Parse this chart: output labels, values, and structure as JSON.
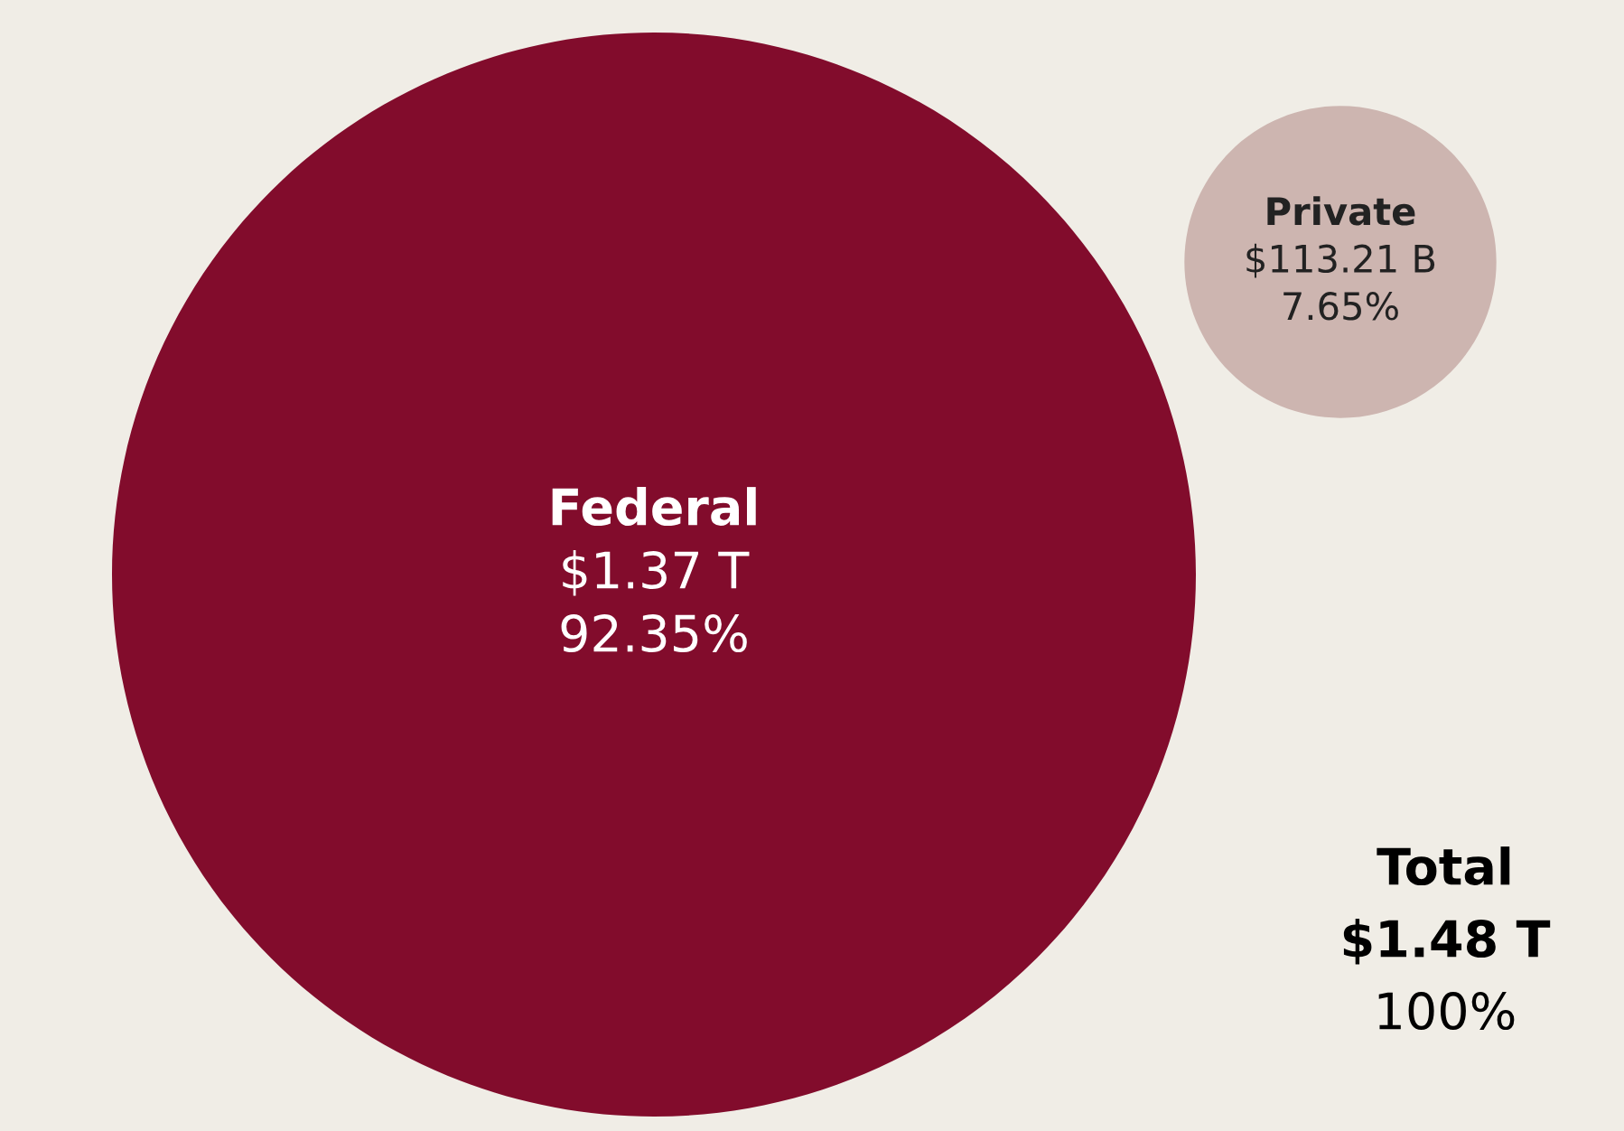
{
  "chart_data": {
    "type": "other",
    "categories": [
      "Federal",
      "Private"
    ],
    "values": [
      92.35,
      7.65
    ],
    "value_labels": [
      "92.35%",
      "7.65%"
    ],
    "colors": [
      "#820c2c",
      "#cdb5b0"
    ],
    "annotations": [
      {
        "text": "$1.37 T",
        "x": "Federal"
      },
      {
        "text": "$113.21 B",
        "x": "Private"
      },
      "Total",
      "$1.48 T",
      "100%"
    ]
  }
}
